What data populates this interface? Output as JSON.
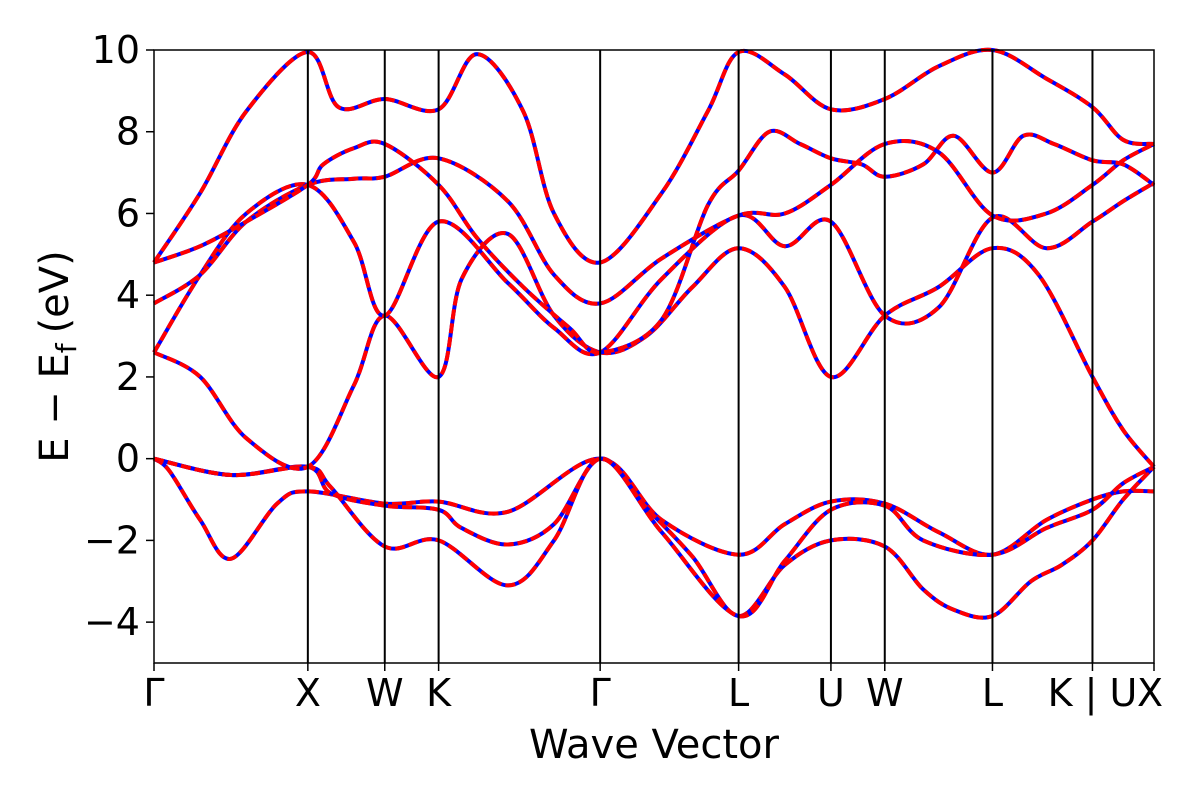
{
  "chart_data": {
    "type": "line",
    "xlabel": "Wave Vector",
    "ylabel": "E − E",
    "ylabel_sub": "f",
    "ylabel_unit": "(eV)",
    "ylim": [
      -5,
      10
    ],
    "yticks": [
      "−4",
      "−2",
      "0",
      "2",
      "4",
      "6",
      "8",
      "10"
    ],
    "ytick_values": [
      -4,
      -2,
      0,
      2,
      4,
      6,
      8,
      10
    ],
    "xlim": [
      0,
      6.5
    ],
    "kpoints": [
      {
        "label": "Γ",
        "x": 0
      },
      {
        "label": "X",
        "x": 1.0
      },
      {
        "label": "W",
        "x": 1.5
      },
      {
        "label": "K",
        "x": 1.85
      },
      {
        "label": "Γ",
        "x": 2.9
      },
      {
        "label": "L",
        "x": 3.8
      },
      {
        "label": "U",
        "x": 4.4
      },
      {
        "label": "W",
        "x": 4.75
      },
      {
        "label": "L",
        "x": 5.45
      },
      {
        "label": "K | U",
        "x": 6.1
      },
      {
        "label": "X",
        "x": 6.5
      }
    ],
    "colors": {
      "reference": "#0000ff",
      "overlay": "#ff0000",
      "frame": "#000000"
    },
    "bands": [
      {
        "x": [
          0,
          0.1,
          0.3,
          0.5,
          0.8,
          1.0,
          1.5,
          1.85,
          2.3,
          2.9,
          3.3,
          3.8,
          4.1,
          4.4,
          4.75,
          5.1,
          5.45,
          5.8,
          6.1,
          6.3,
          6.5
        ],
        "y": [
          0,
          -0.3,
          -1.5,
          -2.45,
          -1.1,
          -0.8,
          -1.1,
          -1.05,
          -1.3,
          0,
          -1.5,
          -2.35,
          -1.6,
          -1.05,
          -1.1,
          -1.8,
          -2.35,
          -1.5,
          -1.0,
          -0.8,
          -0.8
        ]
      },
      {
        "x": [
          0,
          0.5,
          1.0,
          1.15,
          1.5,
          1.85,
          2.0,
          2.3,
          2.6,
          2.9,
          3.2,
          3.5,
          3.8,
          4.1,
          4.4,
          4.75,
          5.0,
          5.2,
          5.45,
          5.7,
          5.9,
          6.1,
          6.3,
          6.5
        ],
        "y": [
          0,
          -0.4,
          -0.2,
          -0.85,
          -1.15,
          -1.25,
          -1.7,
          -2.1,
          -1.6,
          0,
          -1.2,
          -2.4,
          -3.85,
          -2.6,
          -2.0,
          -2.15,
          -3.2,
          -3.7,
          -3.85,
          -3.0,
          -2.6,
          -2.0,
          -1.0,
          -0.2
        ]
      },
      {
        "x": [
          0,
          0.5,
          1.0,
          1.15,
          1.5,
          1.85,
          2.3,
          2.6,
          2.9,
          3.3,
          3.8,
          4.1,
          4.4,
          4.75,
          5.0,
          5.45,
          5.8,
          6.1,
          6.3,
          6.5
        ],
        "y": [
          0,
          -0.4,
          -0.2,
          -0.7,
          -2.15,
          -2.0,
          -3.1,
          -2.0,
          0,
          -1.8,
          -3.85,
          -2.5,
          -1.25,
          -1.15,
          -2.0,
          -2.35,
          -1.7,
          -1.25,
          -0.6,
          -0.2
        ]
      },
      {
        "x": [
          0,
          0.3,
          0.6,
          1.0,
          1.3,
          1.5,
          1.85,
          2.0,
          2.3,
          2.6,
          2.9,
          3.2,
          3.5,
          3.8,
          4.1,
          4.4,
          4.75,
          5.1,
          5.45,
          5.75,
          6.1,
          6.3,
          6.5
        ],
        "y": [
          2.6,
          2.0,
          0.5,
          -0.2,
          1.8,
          3.5,
          2.0,
          4.4,
          5.5,
          3.5,
          2.6,
          3.0,
          4.2,
          5.15,
          4.2,
          2.0,
          3.5,
          4.2,
          5.15,
          4.5,
          2.0,
          0.7,
          -0.2
        ]
      },
      {
        "x": [
          0,
          0.3,
          0.6,
          1.0,
          1.3,
          1.5,
          1.85,
          2.3,
          2.6,
          2.9,
          3.3,
          3.8,
          4.1,
          4.4,
          4.75,
          5.1,
          5.45,
          5.8,
          6.1,
          6.3,
          6.5
        ],
        "y": [
          2.6,
          4.5,
          6.0,
          6.7,
          5.3,
          3.5,
          5.8,
          4.3,
          3.2,
          2.6,
          4.4,
          5.95,
          5.2,
          5.8,
          3.5,
          3.7,
          5.9,
          5.15,
          5.8,
          6.3,
          6.75
        ]
      },
      {
        "x": [
          0,
          0.3,
          0.6,
          1.0,
          1.3,
          1.5,
          1.85,
          2.3,
          2.6,
          2.9,
          3.3,
          3.8,
          4.1,
          4.4,
          4.75,
          5.1,
          5.45,
          5.8,
          6.1,
          6.3,
          6.5
        ],
        "y": [
          3.8,
          4.5,
          5.8,
          6.7,
          6.85,
          6.9,
          7.35,
          6.3,
          4.5,
          3.8,
          4.9,
          5.95,
          6.0,
          6.7,
          7.7,
          7.5,
          5.95,
          6.0,
          6.7,
          7.3,
          7.7
        ]
      },
      {
        "x": [
          0,
          0.3,
          0.6,
          1.0,
          1.1,
          1.3,
          1.5,
          1.85,
          2.1,
          2.4,
          2.7,
          2.9,
          3.3,
          3.6,
          3.8,
          4.0,
          4.2,
          4.4,
          4.6,
          4.75,
          5.0,
          5.2,
          5.45,
          5.65,
          5.85,
          6.1,
          6.3,
          6.5
        ],
        "y": [
          4.8,
          5.2,
          5.8,
          6.7,
          7.2,
          7.6,
          7.7,
          6.7,
          5.4,
          4.2,
          3.2,
          2.6,
          3.4,
          6.2,
          7.05,
          8.0,
          7.7,
          7.35,
          7.2,
          6.9,
          7.2,
          7.9,
          7.0,
          7.9,
          7.7,
          7.3,
          7.2,
          6.7
        ]
      },
      {
        "x": [
          0,
          0.3,
          0.6,
          1.0,
          1.2,
          1.5,
          1.85,
          2.1,
          2.4,
          2.6,
          2.9,
          3.3,
          3.6,
          3.8,
          4.1,
          4.4,
          4.75,
          5.1,
          5.45,
          5.8,
          6.1,
          6.3,
          6.5
        ],
        "y": [
          4.8,
          6.5,
          8.5,
          9.95,
          8.6,
          8.8,
          8.55,
          9.9,
          8.5,
          6.0,
          4.8,
          6.5,
          8.5,
          9.95,
          9.4,
          8.55,
          8.8,
          9.6,
          10.0,
          9.3,
          8.6,
          7.8,
          7.7
        ]
      }
    ]
  }
}
